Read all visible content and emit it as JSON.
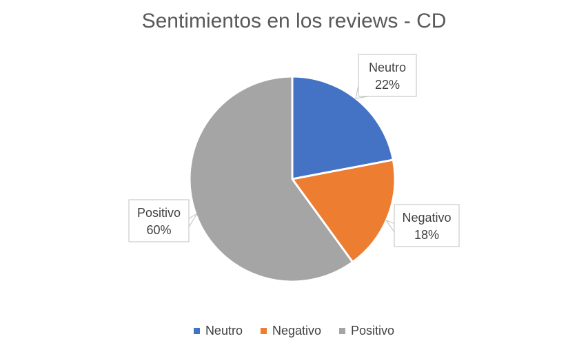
{
  "chart_data": {
    "type": "pie",
    "title": "Sentimientos en los reviews - CD",
    "categories": [
      "Neutro",
      "Negativo",
      "Positivo"
    ],
    "values": [
      22,
      18,
      60
    ],
    "value_labels": [
      "22%",
      "18%",
      "60%"
    ],
    "colors": [
      "#4472C4",
      "#ED7D31",
      "#A5A5A5"
    ],
    "legend_position": "bottom",
    "start_angle": "12 o'clock, clockwise"
  }
}
